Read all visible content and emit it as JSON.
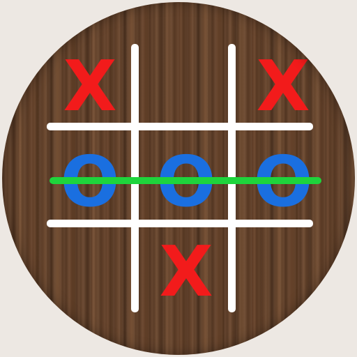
{
  "game": {
    "board": [
      [
        "X",
        "",
        "X"
      ],
      [
        "O",
        "O",
        "O"
      ],
      [
        "",
        "X",
        ""
      ]
    ],
    "winning_row": 1,
    "winner": "O"
  },
  "colors": {
    "x_mark": "#f21b1b",
    "o_mark": "#1a6fe0",
    "win_line": "#1ed43c",
    "grid": "#ffffff",
    "board_wood": "#5f3f29",
    "background": "#ede8e3"
  }
}
